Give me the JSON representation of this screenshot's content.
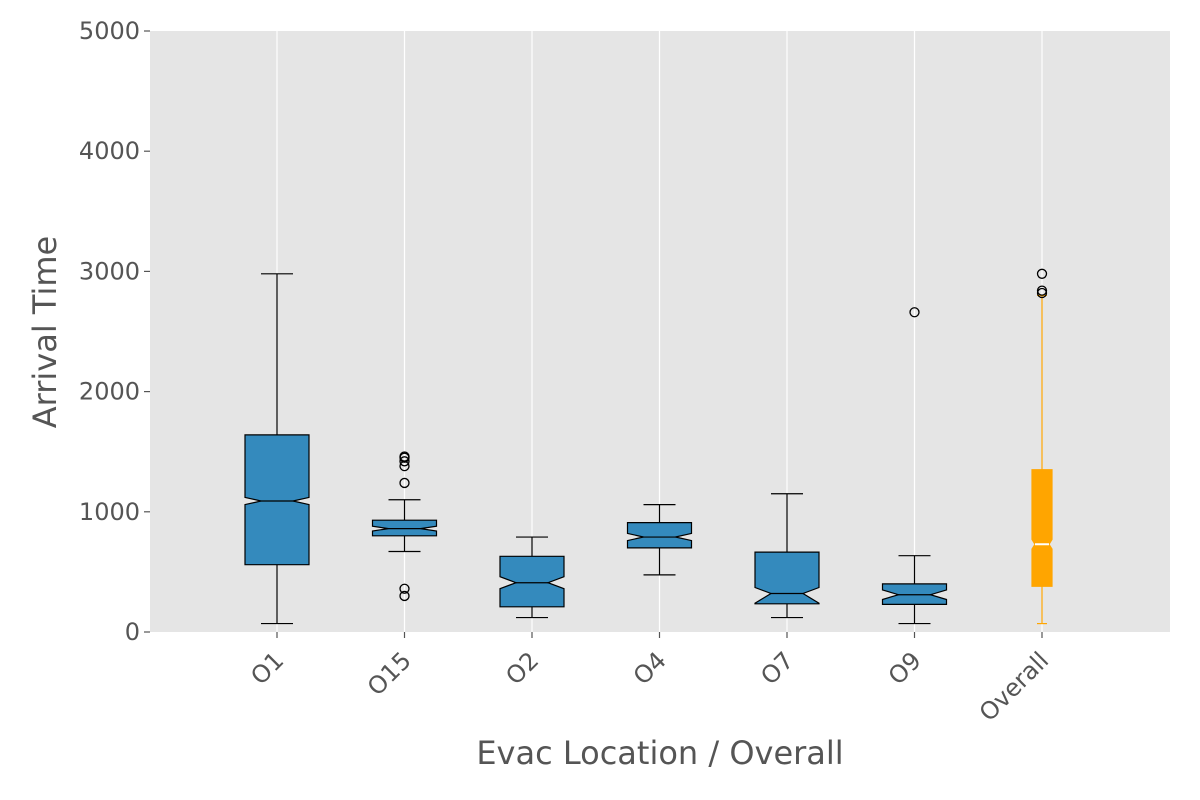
{
  "chart_data": {
    "type": "boxplot",
    "title": "",
    "xlabel": "Evac Location / Overall",
    "ylabel": "Arrival Time",
    "ylim": [
      0,
      5000
    ],
    "yticks": [
      0,
      1000,
      2000,
      3000,
      4000,
      5000
    ],
    "grid": true,
    "notched": true,
    "categories": [
      "O1",
      "O15",
      "O2",
      "O4",
      "O7",
      "O9",
      "Overall"
    ],
    "boxes": [
      {
        "label": "O1",
        "whislo": 70,
        "q1": 560,
        "med": 1090,
        "notch_lo": 1060,
        "notch_hi": 1120,
        "q3": 1640,
        "whishi": 2980,
        "fliers": [],
        "color": "#348ABD"
      },
      {
        "label": "O15",
        "whislo": 670,
        "q1": 800,
        "med": 860,
        "notch_lo": 840,
        "notch_hi": 880,
        "q3": 930,
        "whishi": 1100,
        "fliers": [
          300,
          360,
          1240,
          1380,
          1420,
          1450,
          1460
        ],
        "color": "#348ABD"
      },
      {
        "label": "O2",
        "whislo": 120,
        "q1": 210,
        "med": 410,
        "notch_lo": 360,
        "notch_hi": 460,
        "q3": 630,
        "whishi": 790,
        "fliers": [],
        "color": "#348ABD"
      },
      {
        "label": "O4",
        "whislo": 475,
        "q1": 700,
        "med": 790,
        "notch_lo": 760,
        "notch_hi": 820,
        "q3": 910,
        "whishi": 1060,
        "fliers": [],
        "color": "#348ABD"
      },
      {
        "label": "O7",
        "whislo": 120,
        "q1": 235,
        "med": 320,
        "notch_lo": 240,
        "notch_hi": 370,
        "q3": 665,
        "whishi": 1150,
        "fliers": [],
        "color": "#348ABD"
      },
      {
        "label": "O9",
        "whislo": 70,
        "q1": 230,
        "med": 310,
        "notch_lo": 270,
        "notch_hi": 350,
        "q3": 400,
        "whishi": 635,
        "fliers": [
          2660
        ],
        "color": "#348ABD"
      },
      {
        "label": "Overall",
        "whislo": 70,
        "q1": 380,
        "med": 730,
        "notch_lo": 690,
        "notch_hi": 770,
        "q3": 1350,
        "whishi": 2800,
        "fliers": [
          2820,
          2840,
          2980
        ],
        "color": "#FFA500"
      }
    ],
    "colors": {
      "box": "#348ABD",
      "overall": "#FFA500",
      "background": "#E5E5E5",
      "grid": "#FFFFFF",
      "text": "#555555"
    }
  }
}
